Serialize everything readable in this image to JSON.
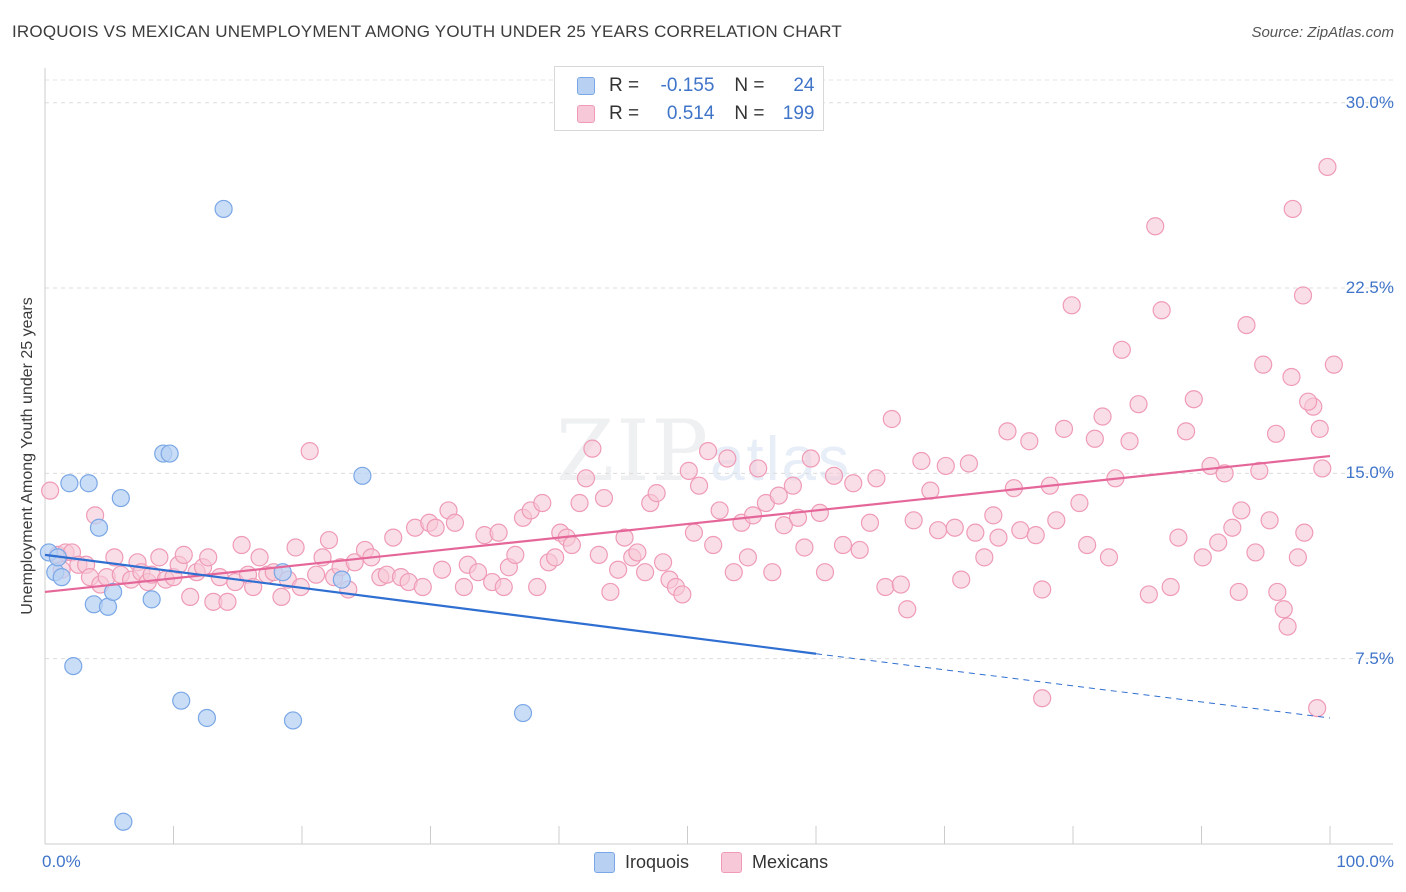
{
  "title": "IROQUOIS VS MEXICAN UNEMPLOYMENT AMONG YOUTH UNDER 25 YEARS CORRELATION CHART",
  "source": "Source: ZipAtlas.com",
  "watermark": {
    "main": "ZIP",
    "sub": "atlas"
  },
  "legend": {
    "rows": [
      {
        "r_label": "R =",
        "r_value": "-0.155",
        "n_label": "N =",
        "n_value": "24",
        "color": "#7aa7e6"
      },
      {
        "r_label": "R =",
        "r_value": "0.514",
        "n_label": "N =",
        "n_value": "199",
        "color": "#ef9bb6"
      }
    ]
  },
  "bottom_legend": [
    "Iroquois",
    "Mexicans"
  ],
  "chart_data": {
    "type": "scatter",
    "title": "IROQUOIS VS MEXICAN UNEMPLOYMENT AMONG YOUTH UNDER 25 YEARS CORRELATION CHART",
    "xlabel": "",
    "ylabel": "Unemployment Among Youth under 25 years",
    "xlim": [
      0,
      100
    ],
    "ylim": [
      0,
      31
    ],
    "x_tick_labels": [
      "0.0%",
      "100.0%"
    ],
    "y_ticks": [
      7.5,
      15.0,
      22.5,
      30.0
    ],
    "y_tick_labels": [
      "7.5%",
      "15.0%",
      "22.5%",
      "30.0%"
    ],
    "grid": true,
    "legend_position": "top-center",
    "series": [
      {
        "name": "Iroquois",
        "color": "#7aa7e6",
        "fill": "#b8d1f3",
        "points": [
          [
            0.3,
            11.8
          ],
          [
            0.8,
            11.0
          ],
          [
            1.3,
            10.8
          ],
          [
            1.9,
            14.6
          ],
          [
            2.2,
            7.2
          ],
          [
            3.4,
            14.6
          ],
          [
            3.8,
            9.7
          ],
          [
            4.2,
            12.8
          ],
          [
            4.9,
            9.6
          ],
          [
            5.3,
            10.2
          ],
          [
            5.9,
            14.0
          ],
          [
            8.3,
            9.9
          ],
          [
            9.2,
            15.8
          ],
          [
            9.7,
            15.8
          ],
          [
            10.6,
            5.8
          ],
          [
            12.6,
            5.1
          ],
          [
            13.9,
            25.7
          ],
          [
            18.5,
            11.0
          ],
          [
            19.3,
            5.0
          ],
          [
            23.1,
            10.7
          ],
          [
            24.7,
            14.9
          ],
          [
            37.2,
            5.3
          ],
          [
            6.1,
            0.9
          ],
          [
            1.0,
            11.6
          ]
        ],
        "trend": {
          "x": [
            0,
            60
          ],
          "y": [
            11.7,
            7.7
          ]
        },
        "trend_dashed": {
          "x": [
            60,
            100
          ],
          "y": [
            7.7,
            5.1
          ]
        }
      },
      {
        "name": "Mexicans",
        "color": "#ef9bb6",
        "fill": "#f7c8d7",
        "points": [
          [
            0.4,
            14.3
          ],
          [
            1.0,
            11.7
          ],
          [
            1.3,
            11.1
          ],
          [
            1.6,
            11.8
          ],
          [
            2.1,
            11.8
          ],
          [
            2.6,
            11.3
          ],
          [
            3.2,
            11.3
          ],
          [
            3.5,
            10.8
          ],
          [
            3.9,
            13.3
          ],
          [
            4.3,
            10.5
          ],
          [
            4.8,
            10.8
          ],
          [
            5.4,
            11.6
          ],
          [
            5.9,
            10.9
          ],
          [
            6.7,
            10.7
          ],
          [
            7.2,
            11.4
          ],
          [
            7.5,
            11.0
          ],
          [
            8.0,
            10.6
          ],
          [
            8.3,
            10.9
          ],
          [
            8.9,
            11.6
          ],
          [
            9.4,
            10.7
          ],
          [
            10.0,
            10.8
          ],
          [
            10.4,
            11.3
          ],
          [
            10.8,
            11.7
          ],
          [
            11.3,
            10.0
          ],
          [
            11.8,
            11.0
          ],
          [
            12.3,
            11.2
          ],
          [
            12.7,
            11.6
          ],
          [
            13.1,
            9.8
          ],
          [
            13.6,
            10.8
          ],
          [
            14.2,
            9.8
          ],
          [
            14.8,
            10.6
          ],
          [
            15.3,
            12.1
          ],
          [
            15.8,
            10.9
          ],
          [
            16.2,
            10.4
          ],
          [
            16.7,
            11.6
          ],
          [
            17.3,
            10.9
          ],
          [
            17.8,
            11.0
          ],
          [
            18.4,
            10.0
          ],
          [
            18.9,
            10.7
          ],
          [
            19.5,
            12.0
          ],
          [
            19.9,
            10.4
          ],
          [
            20.6,
            15.9
          ],
          [
            21.1,
            10.9
          ],
          [
            21.6,
            11.6
          ],
          [
            22.1,
            12.3
          ],
          [
            22.5,
            10.8
          ],
          [
            23.0,
            11.2
          ],
          [
            23.6,
            10.3
          ],
          [
            24.1,
            11.4
          ],
          [
            24.9,
            11.9
          ],
          [
            25.4,
            11.6
          ],
          [
            26.1,
            10.8
          ],
          [
            26.6,
            10.9
          ],
          [
            27.1,
            12.4
          ],
          [
            27.7,
            10.8
          ],
          [
            28.3,
            10.6
          ],
          [
            28.8,
            12.8
          ],
          [
            29.4,
            10.4
          ],
          [
            29.9,
            13.0
          ],
          [
            30.4,
            12.8
          ],
          [
            30.9,
            11.1
          ],
          [
            31.4,
            13.5
          ],
          [
            31.9,
            13.0
          ],
          [
            32.6,
            10.4
          ],
          [
            32.9,
            11.3
          ],
          [
            33.7,
            11.0
          ],
          [
            34.2,
            12.5
          ],
          [
            34.8,
            10.6
          ],
          [
            35.3,
            12.6
          ],
          [
            35.7,
            10.4
          ],
          [
            36.1,
            11.2
          ],
          [
            36.6,
            11.7
          ],
          [
            37.2,
            13.2
          ],
          [
            37.8,
            13.5
          ],
          [
            38.3,
            10.4
          ],
          [
            38.7,
            13.8
          ],
          [
            39.2,
            11.4
          ],
          [
            39.7,
            11.6
          ],
          [
            40.1,
            12.6
          ],
          [
            40.6,
            12.4
          ],
          [
            41.0,
            12.1
          ],
          [
            41.6,
            13.8
          ],
          [
            42.1,
            14.8
          ],
          [
            42.6,
            16.0
          ],
          [
            43.1,
            11.7
          ],
          [
            43.5,
            14.0
          ],
          [
            44.0,
            10.2
          ],
          [
            44.6,
            11.1
          ],
          [
            45.1,
            12.4
          ],
          [
            45.7,
            11.6
          ],
          [
            46.1,
            11.8
          ],
          [
            46.7,
            11.0
          ],
          [
            47.1,
            13.8
          ],
          [
            47.6,
            14.2
          ],
          [
            48.1,
            11.4
          ],
          [
            48.6,
            10.7
          ],
          [
            49.1,
            10.4
          ],
          [
            49.6,
            10.1
          ],
          [
            50.1,
            15.1
          ],
          [
            50.5,
            12.6
          ],
          [
            50.9,
            14.5
          ],
          [
            51.6,
            15.9
          ],
          [
            52.0,
            12.1
          ],
          [
            52.5,
            13.5
          ],
          [
            53.1,
            15.6
          ],
          [
            53.6,
            11.0
          ],
          [
            54.2,
            13.0
          ],
          [
            54.7,
            11.6
          ],
          [
            55.1,
            13.3
          ],
          [
            55.5,
            15.2
          ],
          [
            56.1,
            13.8
          ],
          [
            56.6,
            11.0
          ],
          [
            57.1,
            14.1
          ],
          [
            57.5,
            12.9
          ],
          [
            58.2,
            14.5
          ],
          [
            58.6,
            13.2
          ],
          [
            59.1,
            12.0
          ],
          [
            59.6,
            15.6
          ],
          [
            60.3,
            13.4
          ],
          [
            60.7,
            11.0
          ],
          [
            61.4,
            14.9
          ],
          [
            62.1,
            12.1
          ],
          [
            62.9,
            14.6
          ],
          [
            63.4,
            11.9
          ],
          [
            64.2,
            13.0
          ],
          [
            64.7,
            14.8
          ],
          [
            65.4,
            10.4
          ],
          [
            65.9,
            17.2
          ],
          [
            66.6,
            10.5
          ],
          [
            67.1,
            9.5
          ],
          [
            67.6,
            13.1
          ],
          [
            68.2,
            15.5
          ],
          [
            68.9,
            14.3
          ],
          [
            69.5,
            12.7
          ],
          [
            70.1,
            15.3
          ],
          [
            70.8,
            12.8
          ],
          [
            71.3,
            10.7
          ],
          [
            71.9,
            15.4
          ],
          [
            72.4,
            12.6
          ],
          [
            73.1,
            11.6
          ],
          [
            73.8,
            13.3
          ],
          [
            74.2,
            12.4
          ],
          [
            74.9,
            16.7
          ],
          [
            75.4,
            14.4
          ],
          [
            75.9,
            12.7
          ],
          [
            76.6,
            16.3
          ],
          [
            77.1,
            12.5
          ],
          [
            77.6,
            10.3
          ],
          [
            78.2,
            14.5
          ],
          [
            78.7,
            13.1
          ],
          [
            79.3,
            16.8
          ],
          [
            79.9,
            21.8
          ],
          [
            80.5,
            13.8
          ],
          [
            81.1,
            12.1
          ],
          [
            81.7,
            16.4
          ],
          [
            82.3,
            17.3
          ],
          [
            82.8,
            11.6
          ],
          [
            83.3,
            14.8
          ],
          [
            83.8,
            20.0
          ],
          [
            84.4,
            16.3
          ],
          [
            85.1,
            17.8
          ],
          [
            85.9,
            10.1
          ],
          [
            86.4,
            25.0
          ],
          [
            86.9,
            21.6
          ],
          [
            87.6,
            10.4
          ],
          [
            88.2,
            12.4
          ],
          [
            88.8,
            16.7
          ],
          [
            89.4,
            18.0
          ],
          [
            90.1,
            11.6
          ],
          [
            90.7,
            15.3
          ],
          [
            91.3,
            12.2
          ],
          [
            91.8,
            15.0
          ],
          [
            92.4,
            12.8
          ],
          [
            92.9,
            10.2
          ],
          [
            93.5,
            21.0
          ],
          [
            94.2,
            11.8
          ],
          [
            94.8,
            19.4
          ],
          [
            95.3,
            13.1
          ],
          [
            95.8,
            16.6
          ],
          [
            96.4,
            9.5
          ],
          [
            97.0,
            18.9
          ],
          [
            97.5,
            11.6
          ],
          [
            98.0,
            12.6
          ],
          [
            98.7,
            17.7
          ],
          [
            99.2,
            16.8
          ],
          [
            99.8,
            27.4
          ],
          [
            100.3,
            19.4
          ],
          [
            99.4,
            15.2
          ],
          [
            97.9,
            22.2
          ],
          [
            97.1,
            25.7
          ],
          [
            96.7,
            8.8
          ],
          [
            95.9,
            10.2
          ],
          [
            77.6,
            5.9
          ],
          [
            99.0,
            5.5
          ],
          [
            98.3,
            17.9
          ],
          [
            94.5,
            15.1
          ],
          [
            93.1,
            13.5
          ]
        ],
        "trend": {
          "x": [
            0,
            100
          ],
          "y": [
            10.2,
            15.7
          ]
        }
      }
    ]
  }
}
